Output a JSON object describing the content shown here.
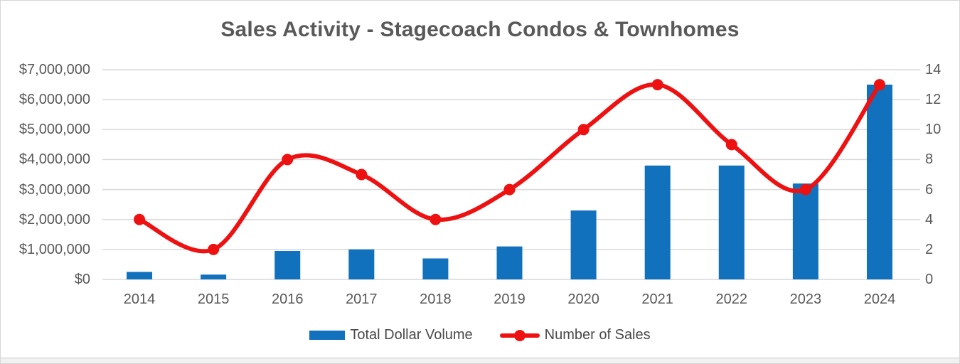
{
  "title": "Sales Activity - Stagecoach Condos & Townhomes",
  "colors": {
    "bar": "#1171BD",
    "line": "#EE1111",
    "grid": "#D9D9D9",
    "axis_text": "#595959",
    "title_text": "#595959"
  },
  "chart_data": {
    "type": "combo: bar + smooth line",
    "title": "Sales Activity - Stagecoach Condos & Townhomes",
    "categories": [
      "2014",
      "2015",
      "2016",
      "2017",
      "2018",
      "2019",
      "2020",
      "2021",
      "2022",
      "2023",
      "2024"
    ],
    "series": [
      {
        "name": "Total Dollar Volume",
        "type": "bar",
        "axis": "left",
        "color": "#1171BD",
        "values": [
          250000,
          160000,
          950000,
          1000000,
          700000,
          1100000,
          2300000,
          3800000,
          3800000,
          3200000,
          6500000
        ]
      },
      {
        "name": "Number of Sales",
        "type": "line",
        "axis": "right",
        "color": "#EE1111",
        "smooth": true,
        "marker": "circle",
        "values": [
          4,
          2,
          8,
          7,
          4,
          6,
          10,
          13,
          9,
          6,
          13
        ]
      }
    ],
    "left_axis": {
      "min": 0,
      "max": 7000000,
      "step": 1000000,
      "tick_labels": [
        "$0",
        "$1,000,000",
        "$2,000,000",
        "$3,000,000",
        "$4,000,000",
        "$5,000,000",
        "$6,000,000",
        "$7,000,000"
      ]
    },
    "right_axis": {
      "min": 0,
      "max": 14,
      "step": 2,
      "tick_labels": [
        "0",
        "2",
        "4",
        "6",
        "8",
        "10",
        "12",
        "14"
      ]
    },
    "grid": "horizontal",
    "legend_position": "bottom"
  },
  "legend": {
    "items": [
      {
        "label": "Total Dollar Volume",
        "swatch": "bar"
      },
      {
        "label": "Number of Sales",
        "swatch": "line-marker"
      }
    ]
  }
}
